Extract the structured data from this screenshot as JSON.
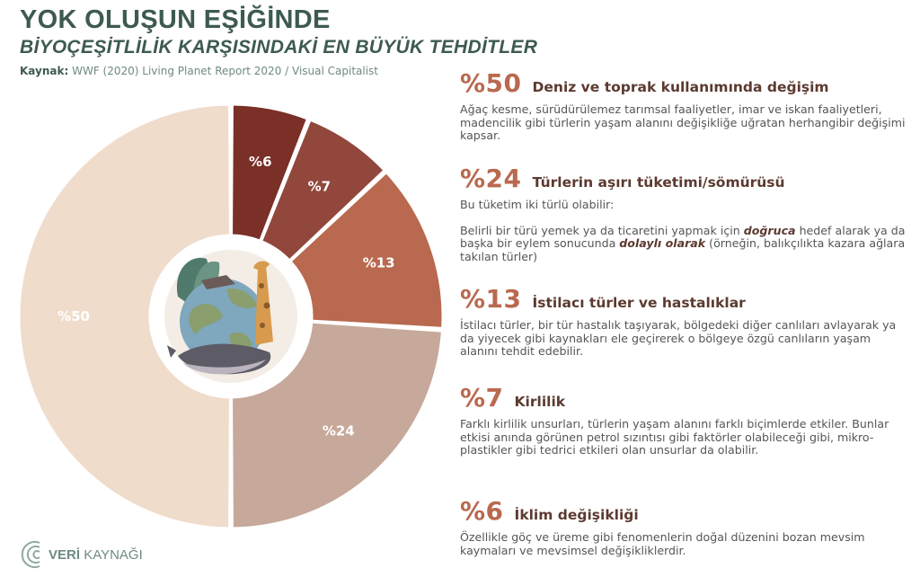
{
  "header": {
    "title": "YOK OLUŞUN EŞİĞİNDE",
    "subtitle": "BİYOÇEŞİTLİLİK KARŞISINDAKİ EN BÜYÜK TEHDİTLER",
    "source_label": "Kaynak:",
    "source_text": "WWF (2020) Living Planet Report 2020 / Visual Capitalist"
  },
  "chart_data": {
    "type": "pie",
    "title": "",
    "labels": [
      "%6",
      "%7",
      "%13",
      "%24",
      "%50"
    ],
    "values": [
      6,
      7,
      13,
      24,
      50
    ],
    "colors": [
      "#7a2f27",
      "#91473c",
      "#b9694f",
      "#c6a99a",
      "#f0dccb"
    ],
    "legend": "none"
  },
  "threats": [
    {
      "pct": "%50",
      "heading": "Deniz ve toprak kullanımında değişim",
      "body": [
        [
          {
            "t": "Ağaç kesme, sürüdürülemez tarımsal faaliyetler, imar ve iskan faaliyetleri, madencilik gibi türlerin yaşam alanını değişikliğe uğratan herhangibir değişimi kapsar."
          }
        ]
      ]
    },
    {
      "pct": "%24",
      "heading": "Türlerin aşırı tüketimi/sömürüsü",
      "body": [
        [
          {
            "t": "Bu tüketim iki türlü olabilir:"
          }
        ],
        [
          {
            "t": "Belirli bir türü yemek ya da ticaretini yapmak için "
          },
          {
            "t": "doğruca",
            "em": true
          },
          {
            "t": " hedef alarak ya da başka bir eylem sonucunda "
          },
          {
            "t": "dolaylı olarak",
            "em": true
          },
          {
            "t": " (örneğin, balıkçılıkta kazara ağlara takılan türler)"
          }
        ]
      ]
    },
    {
      "pct": "%13",
      "heading": "İstilacı türler ve hastalıklar",
      "body": [
        [
          {
            "t": "İstilacı türler, bir tür hastalık taşıyarak, bölgedeki diğer canlıları avlayarak ya da yiyecek gibi kaynakları ele geçirerek o bölgeye özgü canlıların yaşam alanını tehdit edebilir."
          }
        ]
      ]
    },
    {
      "pct": "%7",
      "heading": "Kirlilik",
      "body": [
        [
          {
            "t": "Farklı kirlilik unsurları, türlerin yaşam alanını farklı biçimlerde etkiler. Bunlar etkisi anında görünen petrol sızıntısı gibi faktörler olabileceği gibi, mikro-plastikler gibi tedrici etkileri olan unsurlar da olabilir."
          }
        ]
      ]
    },
    {
      "pct": "%6",
      "heading": "İklim değişikliği",
      "body": [
        [
          {
            "t": "Özellikle göç ve üreme gibi fenomenlerin doğal düzenini bozan mevsim kaymaları ve mevsimsel değişikliklerdir."
          }
        ]
      ]
    }
  ],
  "logo": {
    "bold": "VERİ",
    "rest": "KAYNAĞI"
  }
}
